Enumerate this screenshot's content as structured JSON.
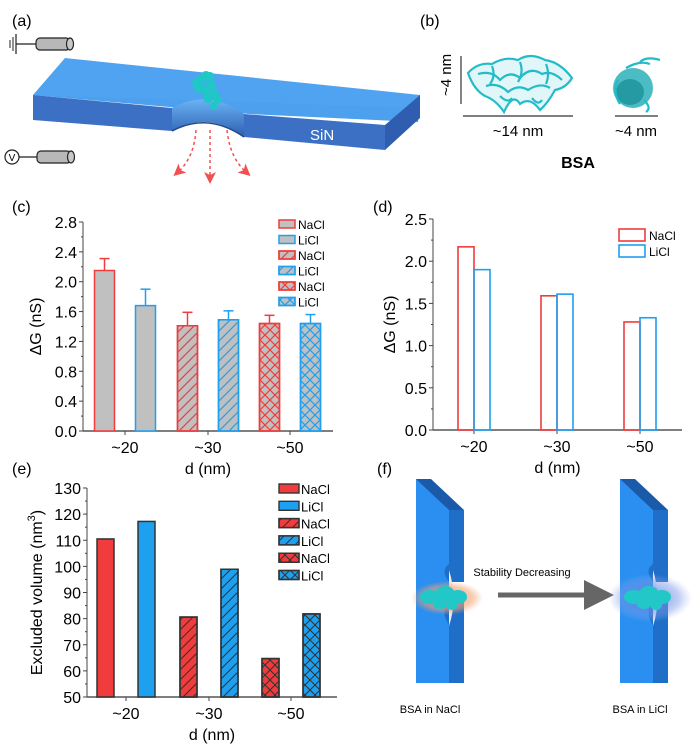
{
  "panels": {
    "a": {
      "label": "(a)",
      "membrane_label": "SiN",
      "ground_icon": "ground-symbol-icon",
      "voltage_symbol": "V",
      "colors": {
        "membrane_top": "#4fa3f0",
        "membrane_side": "#3b70c4",
        "membrane_front": "#3566b8",
        "protein": "#1fc7c7",
        "flow_arrow": "#f05050"
      }
    },
    "b": {
      "label": "(b)",
      "height_label": "~4 nm",
      "width_label_left": "~14 nm",
      "width_label_right": "~4 nm",
      "title": "BSA",
      "protein_color": "#22bcc8"
    },
    "f": {
      "label": "(f)",
      "arrow_text": "Stability Decreasing",
      "left_caption": "BSA in NaCl",
      "right_caption": "BSA in LiCl",
      "colors": {
        "membrane_front": "#2a8ff0",
        "membrane_edge": "#1f6fc8",
        "membrane_top": "#1a5aa8",
        "halo_nacl": "#f2a070",
        "halo_licl": "#6080e0",
        "arrow": "#666666",
        "protein": "#22c8c8"
      }
    }
  },
  "chart_data": [
    {
      "id": "c",
      "panel_label": "(c)",
      "type": "bar",
      "categories": [
        "~20",
        "~30",
        "~50"
      ],
      "xlabel": "d (nm)",
      "ylabel": "ΔG (nS)",
      "ylim": [
        0,
        2.8
      ],
      "yticks": [
        "0.0",
        "0.4",
        "0.8",
        "1.2",
        "1.6",
        "2.0",
        "2.4",
        "2.8"
      ],
      "ytick_values": [
        0,
        0.4,
        0.8,
        1.2,
        1.6,
        2.0,
        2.4,
        2.8
      ],
      "legend_position": "top-right",
      "bars_fill": "#c0c0c0",
      "series": [
        {
          "name": "NaCl",
          "category": "~20",
          "value": 2.15,
          "error": 0.16,
          "edge": "#f03c3c",
          "pattern": "none"
        },
        {
          "name": "LiCl",
          "category": "~20",
          "value": 1.68,
          "error": 0.22,
          "edge": "#1ea0f0",
          "pattern": "none"
        },
        {
          "name": "NaCl",
          "category": "~30",
          "value": 1.41,
          "error": 0.18,
          "edge": "#f03c3c",
          "pattern": "diagonal"
        },
        {
          "name": "LiCl",
          "category": "~30",
          "value": 1.49,
          "error": 0.12,
          "edge": "#1ea0f0",
          "pattern": "diagonal"
        },
        {
          "name": "NaCl",
          "category": "~50",
          "value": 1.44,
          "error": 0.11,
          "edge": "#f03c3c",
          "pattern": "crosshatch"
        },
        {
          "name": "LiCl",
          "category": "~50",
          "value": 1.44,
          "error": 0.12,
          "edge": "#1ea0f0",
          "pattern": "crosshatch"
        }
      ]
    },
    {
      "id": "d",
      "panel_label": "(d)",
      "type": "bar",
      "categories": [
        "~20",
        "~30",
        "~50"
      ],
      "xlabel": "d (nm)",
      "ylabel": "ΔG (nS)",
      "ylim": [
        0,
        2.5
      ],
      "yticks": [
        "0.0",
        "0.5",
        "1.0",
        "1.5",
        "2.0",
        "2.5"
      ],
      "ytick_values": [
        0,
        0.5,
        1.0,
        1.5,
        2.0,
        2.5
      ],
      "legend_position": "top-right",
      "series": [
        {
          "name": "NaCl",
          "edge": "#f03c3c",
          "values": [
            2.17,
            1.59,
            1.28
          ]
        },
        {
          "name": "LiCl",
          "edge": "#1ea0f0",
          "values": [
            1.9,
            1.61,
            1.33
          ]
        }
      ]
    },
    {
      "id": "e",
      "panel_label": "(e)",
      "type": "bar",
      "categories": [
        "~20",
        "~30",
        "~50"
      ],
      "xlabel": "d (nm)",
      "ylabel": "Excluded volume (nm",
      "ylabel_superscript": "3",
      "ylabel_close": ")",
      "ylim": [
        50,
        130
      ],
      "yticks": [
        "50",
        "60",
        "70",
        "80",
        "90",
        "100",
        "110",
        "120",
        "130"
      ],
      "ytick_values": [
        50,
        60,
        70,
        80,
        90,
        100,
        110,
        120,
        130
      ],
      "legend_position": "top-right",
      "series": [
        {
          "name": "NaCl",
          "category": "~20",
          "value": 110.5,
          "fill": "#f03c3c",
          "pattern": "none"
        },
        {
          "name": "LiCl",
          "category": "~20",
          "value": 117.2,
          "fill": "#1ea0f0",
          "pattern": "none"
        },
        {
          "name": "NaCl",
          "category": "~30",
          "value": 80.6,
          "fill": "#f03c3c",
          "pattern": "diagonal"
        },
        {
          "name": "LiCl",
          "category": "~30",
          "value": 98.9,
          "fill": "#1ea0f0",
          "pattern": "diagonal"
        },
        {
          "name": "NaCl",
          "category": "~50",
          "value": 64.7,
          "fill": "#f03c3c",
          "pattern": "crosshatch"
        },
        {
          "name": "LiCl",
          "category": "~50",
          "value": 81.8,
          "fill": "#1ea0f0",
          "pattern": "crosshatch"
        }
      ]
    }
  ]
}
